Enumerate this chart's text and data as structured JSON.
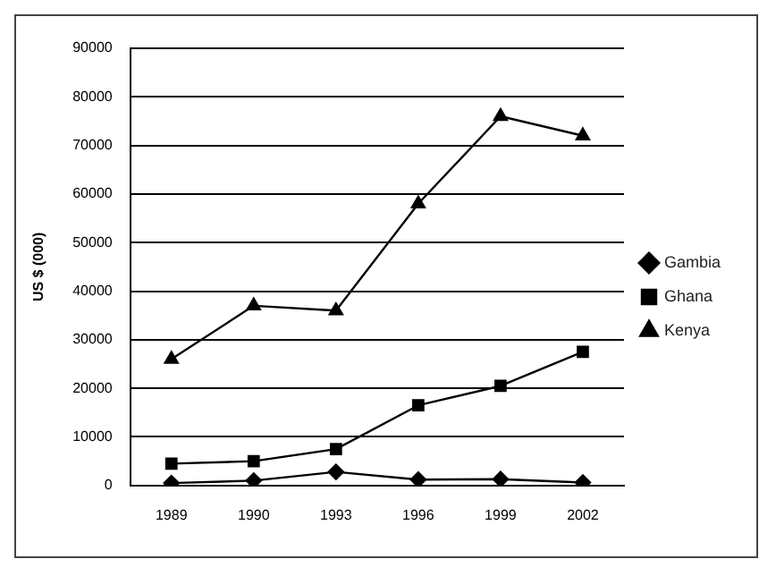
{
  "chart_data": {
    "type": "line",
    "ylabel": "US $ (000)",
    "categories": [
      "1989",
      "1990",
      "1993",
      "1996",
      "1999",
      "2002"
    ],
    "series": [
      {
        "name": "Gambia",
        "color": "#000000",
        "marker": "diamond",
        "values": [
          500,
          1000,
          2800,
          1200,
          1300,
          600
        ]
      },
      {
        "name": "Ghana",
        "color": "#000000",
        "marker": "square",
        "values": [
          4500,
          5000,
          7500,
          16500,
          20500,
          27500
        ]
      },
      {
        "name": "Kenya",
        "color": "#000000",
        "marker": "triangle",
        "values": [
          26000,
          37000,
          36000,
          58000,
          76000,
          72000
        ]
      }
    ],
    "ylim": [
      0,
      90000
    ],
    "yticks": [
      0,
      10000,
      20000,
      30000,
      40000,
      50000,
      60000,
      70000,
      80000,
      90000
    ],
    "grid": "y",
    "legend": "right",
    "line_style": "solid"
  }
}
